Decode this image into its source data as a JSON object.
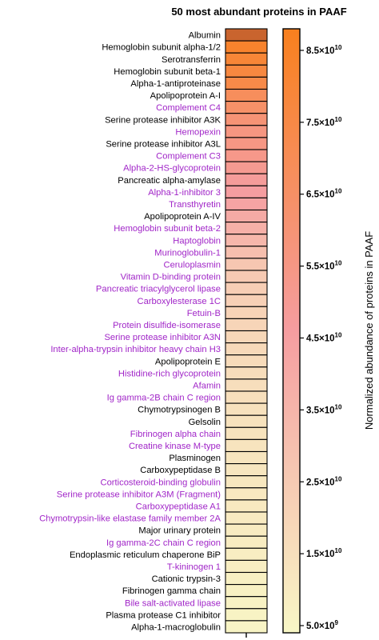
{
  "chart_data": {
    "type": "heatmap",
    "title": "50 most abundant proteins in PAAF",
    "colorbar_label": "Normalized abundance of proteins in PAAF",
    "colorbar_ticks": [
      {
        "value": 85000000000,
        "mantissa": "8.5×10",
        "exp": "10"
      },
      {
        "value": 75000000000,
        "mantissa": "7.5×10",
        "exp": "10"
      },
      {
        "value": 65000000000,
        "mantissa": "6.5×10",
        "exp": "10"
      },
      {
        "value": 55000000000,
        "mantissa": "5.5×10",
        "exp": "10"
      },
      {
        "value": 45000000000,
        "mantissa": "4.5×10",
        "exp": "10"
      },
      {
        "value": 35000000000,
        "mantissa": "3.5×10",
        "exp": "10"
      },
      {
        "value": 25000000000,
        "mantissa": "2.5×10",
        "exp": "10"
      },
      {
        "value": 15000000000,
        "mantissa": "1.5×10",
        "exp": "10"
      },
      {
        "value": 5000000000,
        "mantissa": "5.0×10",
        "exp": "9"
      }
    ],
    "color_range": [
      4000000000,
      88000000000
    ],
    "colors": {
      "low": "#f8f7c6",
      "mid": "#f59da0",
      "high": "#f8801e",
      "max_cell": "#c9642e",
      "label_black": "#000000",
      "label_purple": "#a126c8"
    },
    "rows": [
      {
        "name": "Albumin",
        "value": 88000000000,
        "color": "black"
      },
      {
        "name": "Hemoglobin subunit alpha-1/2",
        "value": 83000000000,
        "color": "black"
      },
      {
        "name": "Serotransferrin",
        "value": 80000000000,
        "color": "black"
      },
      {
        "name": "Hemoglobin subunit beta-1",
        "value": 77000000000,
        "color": "black"
      },
      {
        "name": "Alpha-1-antiproteinase",
        "value": 74000000000,
        "color": "black"
      },
      {
        "name": "Apolipoprotein A-I",
        "value": 68000000000,
        "color": "black"
      },
      {
        "name": "Complement C4",
        "value": 64000000000,
        "color": "purple"
      },
      {
        "name": "Serine protease inhibitor A3K",
        "value": 60000000000,
        "color": "black"
      },
      {
        "name": "Hemopexin",
        "value": 56000000000,
        "color": "purple"
      },
      {
        "name": "Serine protease inhibitor A3L",
        "value": 55000000000,
        "color": "black"
      },
      {
        "name": "Complement C3",
        "value": 53000000000,
        "color": "purple"
      },
      {
        "name": "Alpha-2-HS-glycoprotein",
        "value": 51000000000,
        "color": "purple"
      },
      {
        "name": "Pancreatic alpha-amylase",
        "value": 48000000000,
        "color": "black"
      },
      {
        "name": "Alpha-1-inhibitor 3",
        "value": 46000000000,
        "color": "purple"
      },
      {
        "name": "Transthyretin",
        "value": 43000000000,
        "color": "purple"
      },
      {
        "name": "Apolipoprotein A-IV",
        "value": 40000000000,
        "color": "black"
      },
      {
        "name": "Hemoglobin subunit beta-2",
        "value": 37000000000,
        "color": "purple"
      },
      {
        "name": "Haptoglobin",
        "value": 34000000000,
        "color": "purple"
      },
      {
        "name": "Murinoglobulin-1",
        "value": 30000000000,
        "color": "purple"
      },
      {
        "name": "Ceruloplasmin",
        "value": 27000000000,
        "color": "purple"
      },
      {
        "name": "Vitamin D-binding protein",
        "value": 25000000000,
        "color": "purple"
      },
      {
        "name": "Pancreatic triacylglycerol lipase",
        "value": 23000000000,
        "color": "purple"
      },
      {
        "name": "Carboxylesterase 1C",
        "value": 22000000000,
        "color": "purple"
      },
      {
        "name": "Fetuin-B",
        "value": 21000000000,
        "color": "purple"
      },
      {
        "name": "Protein disulfide-isomerase",
        "value": 20000000000,
        "color": "purple"
      },
      {
        "name": "Serine protease inhibitor A3N",
        "value": 19000000000,
        "color": "purple"
      },
      {
        "name": "Inter-alpha-trypsin inhibitor heavy chain H3",
        "value": 18000000000,
        "color": "purple"
      },
      {
        "name": "Apolipoprotein E",
        "value": 17000000000,
        "color": "black"
      },
      {
        "name": "Histidine-rich glycoprotein",
        "value": 16000000000,
        "color": "purple"
      },
      {
        "name": "Afamin",
        "value": 15500000000,
        "color": "purple"
      },
      {
        "name": "Ig gamma-2B chain C region",
        "value": 15000000000,
        "color": "purple"
      },
      {
        "name": "Chymotrypsinogen B",
        "value": 14500000000,
        "color": "black"
      },
      {
        "name": "Gelsolin",
        "value": 14000000000,
        "color": "black"
      },
      {
        "name": "Fibrinogen alpha chain",
        "value": 13500000000,
        "color": "purple"
      },
      {
        "name": "Creatine kinase M-type",
        "value": 13000000000,
        "color": "purple"
      },
      {
        "name": "Plasminogen",
        "value": 12500000000,
        "color": "black"
      },
      {
        "name": "Carboxypeptidase B",
        "value": 12000000000,
        "color": "black"
      },
      {
        "name": "Corticosteroid-binding globulin",
        "value": 11500000000,
        "color": "purple"
      },
      {
        "name": "Serine protease inhibitor A3M (Fragment)",
        "value": 11000000000,
        "color": "purple"
      },
      {
        "name": "Carboxypeptidase A1",
        "value": 10500000000,
        "color": "purple"
      },
      {
        "name": "Chymotrypsin-like elastase family member 2A",
        "value": 10000000000,
        "color": "purple"
      },
      {
        "name": "Major urinary protein",
        "value": 9500000000,
        "color": "black"
      },
      {
        "name": "Ig gamma-2C chain C region",
        "value": 9000000000,
        "color": "purple"
      },
      {
        "name": "Endoplasmic reticulum chaperone BiP",
        "value": 8500000000,
        "color": "black"
      },
      {
        "name": "T-kininogen 1",
        "value": 8000000000,
        "color": "purple"
      },
      {
        "name": "Cationic trypsin-3",
        "value": 7500000000,
        "color": "black"
      },
      {
        "name": "Fibrinogen gamma chain",
        "value": 7000000000,
        "color": "black"
      },
      {
        "name": "Bile salt-activated lipase",
        "value": 6500000000,
        "color": "purple"
      },
      {
        "name": "Plasma protease C1 inhibitor",
        "value": 6000000000,
        "color": "black"
      },
      {
        "name": "Alpha-1-macroglobulin",
        "value": 5500000000,
        "color": "black"
      }
    ]
  }
}
